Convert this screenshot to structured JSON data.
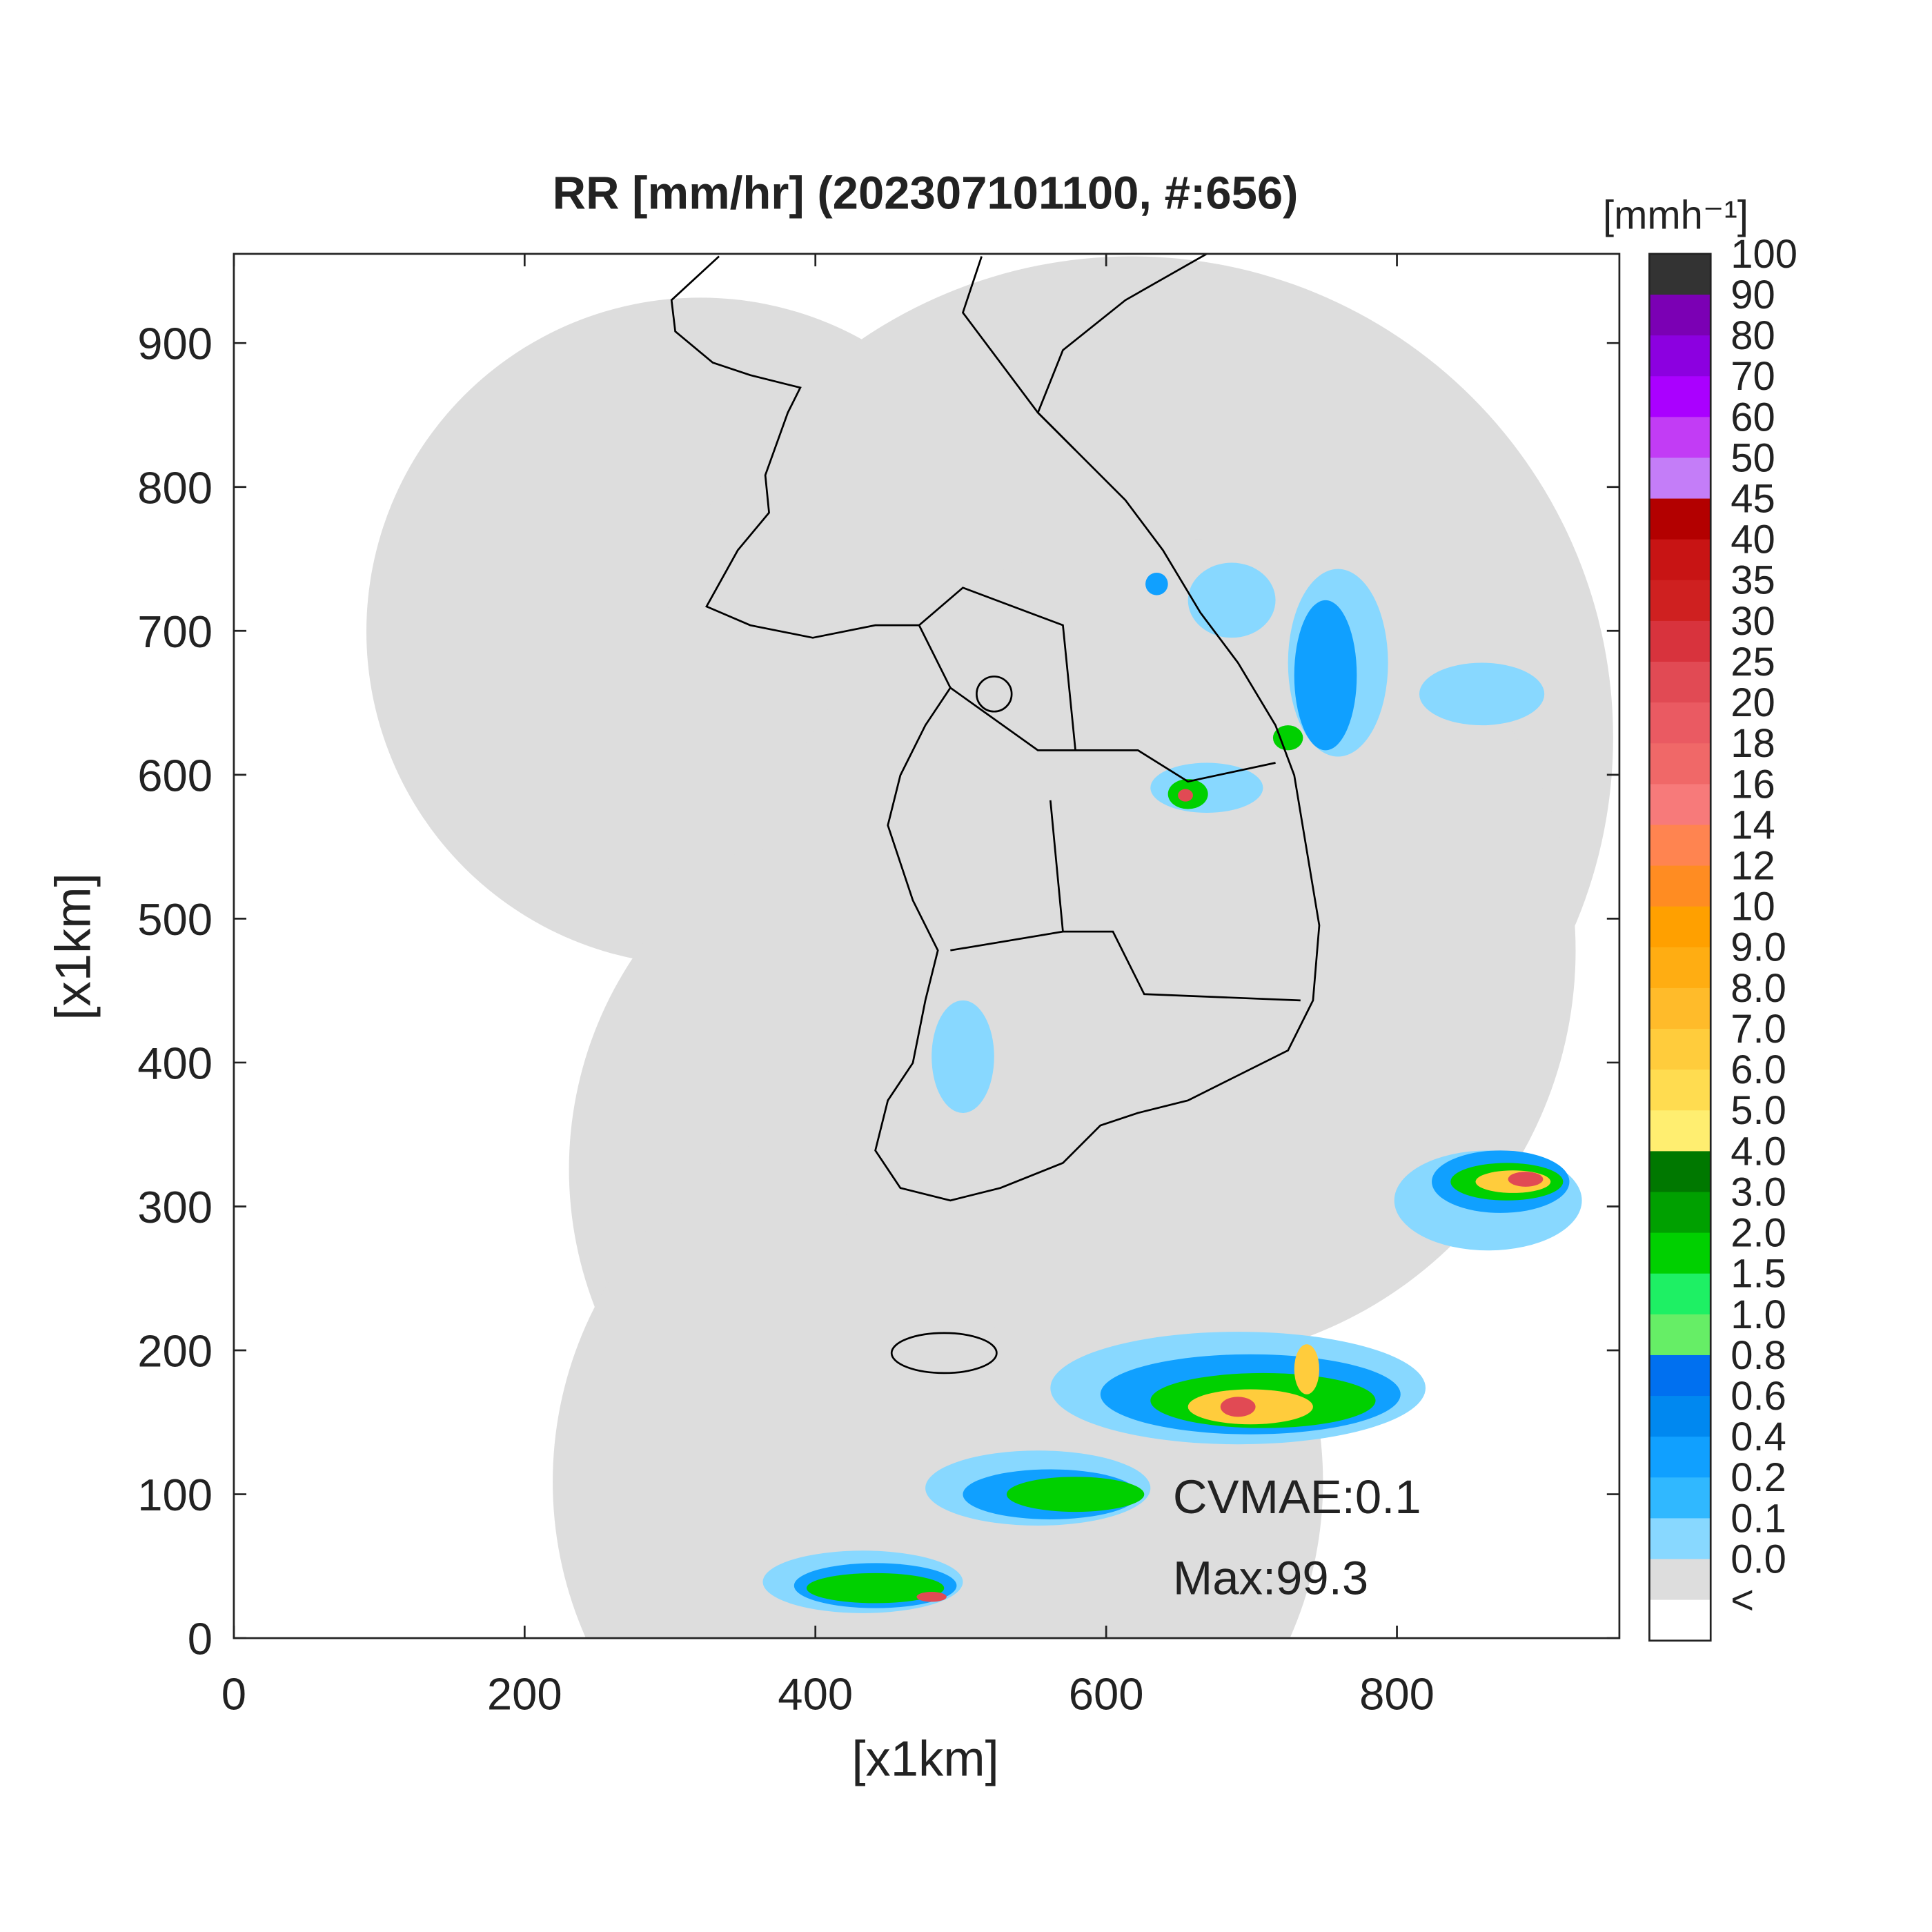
{
  "chart_data": {
    "type": "map",
    "title": "RR [mm/hr] (202307101100, #:656)",
    "xlabel": "[x1km]",
    "ylabel": "[x1km]",
    "xlim": [
      0,
      953
    ],
    "ylim": [
      0,
      962
    ],
    "xticks": [
      0,
      200,
      400,
      600,
      800
    ],
    "yticks": [
      0,
      100,
      200,
      300,
      400,
      500,
      600,
      700,
      800,
      900
    ],
    "colorbar": {
      "title": "[mmh⁻¹]",
      "labels": [
        "100",
        "90",
        "80",
        "70",
        "60",
        "50",
        "45",
        "40",
        "35",
        "30",
        "25",
        "20",
        "18",
        "16",
        "14",
        "12",
        "10",
        "9.0",
        "8.0",
        "7.0",
        "6.0",
        "5.0",
        "4.0",
        "3.0",
        "2.0",
        "1.5",
        "1.0",
        "0.8",
        "0.6",
        "0.4",
        "0.2",
        "0.1",
        "0.0",
        "<"
      ],
      "colors": [
        "#333333",
        "#7b00b4",
        "#8c00e0",
        "#aa00ff",
        "#c23cf5",
        "#c47df8",
        "#b30000",
        "#c81414",
        "#cf2020",
        "#d8333d",
        "#e14a54",
        "#ea5a62",
        "#f06868",
        "#f77a7a",
        "#ff8450",
        "#ff8c22",
        "#ffa000",
        "#ffad12",
        "#ffbb2a",
        "#ffcc3c",
        "#ffdc50",
        "#ffee70",
        "#007800",
        "#00a000",
        "#00d000",
        "#1ef064",
        "#66ee66",
        "#0070f0",
        "#0088f0",
        "#10a0ff",
        "#30b8ff",
        "#88d8ff",
        "#dddddd",
        "#ffffff"
      ]
    },
    "annotations": [
      "CVMAE:0.1",
      "Max:99.3"
    ]
  }
}
